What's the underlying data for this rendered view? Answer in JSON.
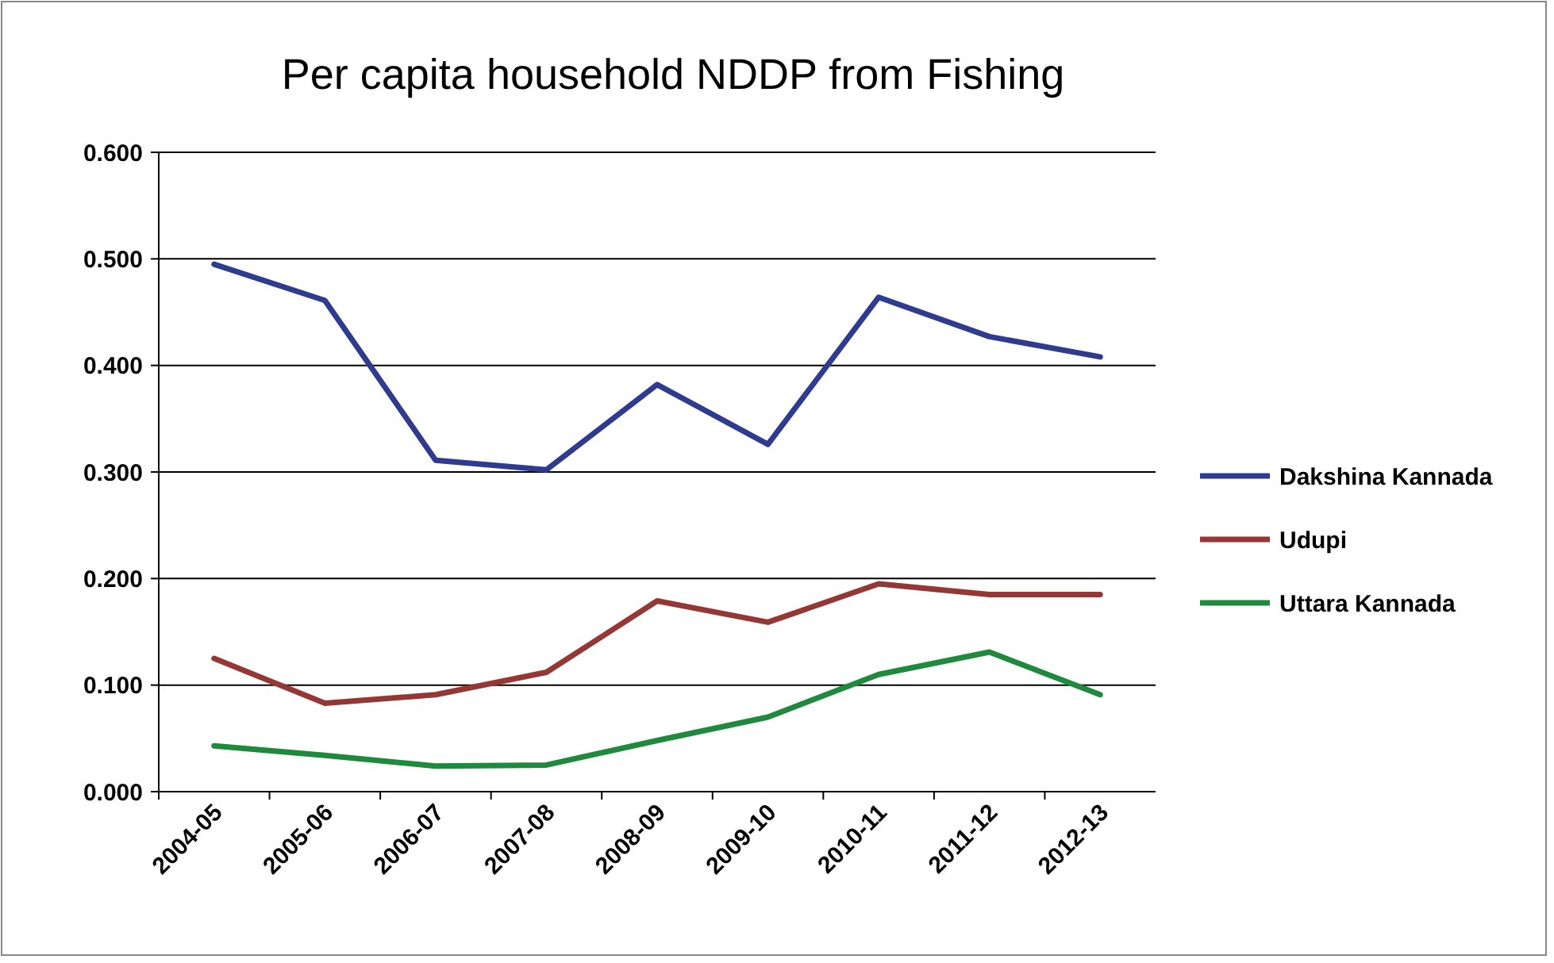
{
  "chart_data": {
    "type": "line",
    "title": "Per capita household NDDP from Fishing",
    "categories": [
      "2004-05",
      "2005-06",
      "2006-07",
      "2007-08",
      "2008-09",
      "2009-10",
      "2010-11",
      "2011-12",
      "2012-13"
    ],
    "series": [
      {
        "name": "Dakshina Kannada",
        "color": "#2e3b8f",
        "values": [
          0.495,
          0.461,
          0.311,
          0.302,
          0.382,
          0.326,
          0.464,
          0.427,
          0.408
        ]
      },
      {
        "name": "Udupi",
        "color": "#953735",
        "values": [
          0.125,
          0.083,
          0.091,
          0.112,
          0.179,
          0.159,
          0.195,
          0.185,
          0.185
        ]
      },
      {
        "name": "Uttara Kannada",
        "color": "#1f8a3e",
        "values": [
          0.043,
          0.034,
          0.024,
          0.025,
          0.048,
          0.07,
          0.11,
          0.131,
          0.091
        ]
      }
    ],
    "ylim": [
      0,
      0.6
    ],
    "yticks": [
      {
        "value": 0,
        "label": "0.000"
      },
      {
        "value": 0.1,
        "label": "0.100"
      },
      {
        "value": 0.2,
        "label": "0.200"
      },
      {
        "value": 0.3,
        "label": "0.300"
      },
      {
        "value": 0.4,
        "label": "0.400"
      },
      {
        "value": 0.5,
        "label": "0.500"
      },
      {
        "value": 0.6,
        "label": "0.600"
      }
    ],
    "grid": "y",
    "legend": "right",
    "marker": "none",
    "line_style": "solid"
  }
}
